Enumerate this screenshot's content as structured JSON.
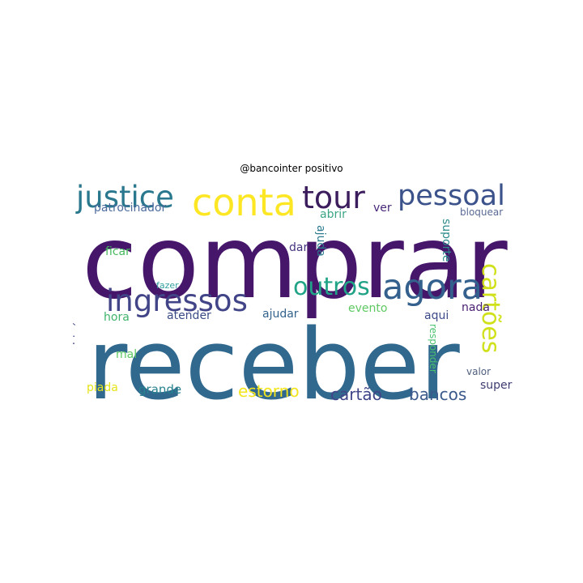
{
  "title": "@bancointer positivo",
  "colormap": "viridis",
  "background": "#ffffff",
  "words": [
    {
      "text": "comprar",
      "color": "#46166b",
      "orientation": "horizontal"
    },
    {
      "text": "receber",
      "color": "#31688e",
      "orientation": "horizontal"
    },
    {
      "text": "conta",
      "color": "#fde725",
      "orientation": "horizontal"
    },
    {
      "text": "agora",
      "color": "#33608c",
      "orientation": "horizontal"
    },
    {
      "text": "justice",
      "color": "#2a788e",
      "orientation": "horizontal"
    },
    {
      "text": "tour",
      "color": "#3b1c5c",
      "orientation": "horizontal"
    },
    {
      "text": "pessoal",
      "color": "#3b528b",
      "orientation": "horizontal"
    },
    {
      "text": "ingressos",
      "color": "#414487",
      "orientation": "horizontal"
    },
    {
      "text": "outros",
      "color": "#20a386",
      "orientation": "horizontal"
    },
    {
      "text": "cartões",
      "color": "#d0e11c",
      "orientation": "vertical"
    },
    {
      "text": "estorno",
      "color": "#f2e51d",
      "orientation": "horizontal"
    },
    {
      "text": "cartão",
      "color": "#404688",
      "orientation": "horizontal"
    },
    {
      "text": "bancos",
      "color": "#3b5a8c",
      "orientation": "horizontal"
    },
    {
      "text": "patrocinador",
      "color": "#4c6a9c",
      "orientation": "horizontal"
    },
    {
      "text": "abrir",
      "color": "#3aa485",
      "orientation": "horizontal"
    },
    {
      "text": "ver",
      "color": "#482878",
      "orientation": "horizontal"
    },
    {
      "text": "bloquear",
      "color": "#5a6a94",
      "orientation": "horizontal"
    },
    {
      "text": "ficar",
      "color": "#44b85c",
      "orientation": "horizontal"
    },
    {
      "text": "dar",
      "color": "#46337e",
      "orientation": "horizontal"
    },
    {
      "text": "ajuda",
      "color": "#2c7a8e",
      "orientation": "vertical"
    },
    {
      "text": "suporte",
      "color": "#2d8a8b",
      "orientation": "vertical"
    },
    {
      "text": "fazer",
      "color": "#34a0a0",
      "orientation": "horizontal"
    },
    {
      "text": "hora",
      "color": "#3fb36b",
      "orientation": "horizontal"
    },
    {
      "text": "atender",
      "color": "#3a4b86",
      "orientation": "horizontal"
    },
    {
      "text": "ajudar",
      "color": "#33638d",
      "orientation": "horizontal"
    },
    {
      "text": "evento",
      "color": "#5ec962",
      "orientation": "horizontal"
    },
    {
      "text": "aqui",
      "color": "#3e4a89",
      "orientation": "horizontal"
    },
    {
      "text": "nada",
      "color": "#481f70",
      "orientation": "horizontal"
    },
    {
      "text": "rápido",
      "color": "#414487",
      "orientation": "vertical"
    },
    {
      "text": "mal",
      "color": "#5ec962",
      "orientation": "horizontal"
    },
    {
      "text": "responder",
      "color": "#4ac16d",
      "orientation": "vertical"
    },
    {
      "text": "valor",
      "color": "#50607e",
      "orientation": "horizontal"
    },
    {
      "text": "piada",
      "color": "#e5e419",
      "orientation": "horizontal"
    },
    {
      "text": "grande",
      "color": "#26828e",
      "orientation": "horizontal"
    },
    {
      "text": "super",
      "color": "#3e3c70",
      "orientation": "horizontal"
    }
  ]
}
